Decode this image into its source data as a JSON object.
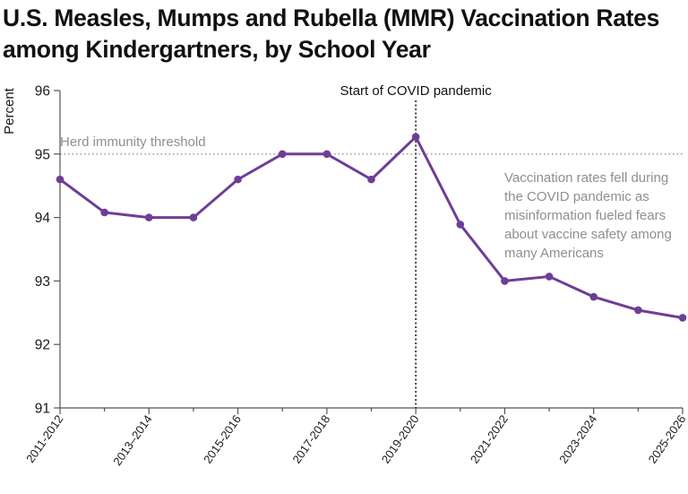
{
  "chart_data": {
    "type": "line",
    "title": "U.S. Measles, Mumps and Rubella (MMR) Vaccination Rates among Kindergartners, by School Year",
    "title_lines": [
      "U.S. Measles, Mumps and Rubella (MMR) Vaccination Rates",
      "among Kindergartners, by School Year"
    ],
    "ylabel": "Percent",
    "xlabel": "",
    "ylim": [
      91,
      96
    ],
    "yticks": [
      91,
      92,
      93,
      94,
      95,
      96
    ],
    "categories": [
      "2011-2012",
      "2012-2013",
      "2013-2014",
      "2014-2015",
      "2015-2016",
      "2016-2017",
      "2017-2018",
      "2018-2019",
      "2019-2020",
      "2020-2021",
      "2021-2022",
      "2022-2023",
      "2023-2024",
      "2024-2025",
      "2025-2026"
    ],
    "xticklabels": [
      "2011-2012",
      "2013–2014",
      "2015-2016",
      "2017-2018",
      "2019-2020",
      "2021-2022",
      "2023-2024",
      "2025-2026"
    ],
    "xtick_every": 2,
    "values": [
      94.6,
      94.08,
      94.0,
      94.0,
      94.6,
      95.0,
      95.0,
      94.6,
      95.27,
      93.89,
      93.0,
      93.07,
      92.75,
      92.54,
      92.42
    ],
    "line_color": "#6e3e96",
    "axis_color": "#555555",
    "grid": false,
    "reference_line": {
      "label": "Herd immunity threshold",
      "value": 95,
      "color": "#8f8f8f",
      "style": "dotted"
    },
    "event_line": {
      "label": "Start of COVID pandemic",
      "category": "2019-2020",
      "color": "#111111",
      "style": "dotted"
    },
    "annotation": {
      "lines": [
        "Vaccination rates fell during",
        "the COVID pandemic as",
        "misinformation fueled fears",
        "about vaccine safety among",
        "many Americans"
      ],
      "color": "#8f8f8f"
    }
  }
}
